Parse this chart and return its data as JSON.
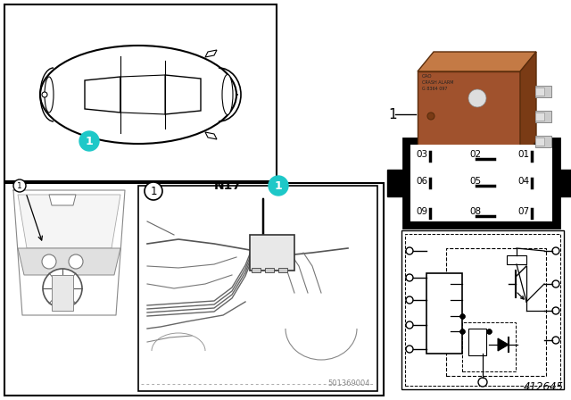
{
  "bg_color": "#ffffff",
  "cyan_color": "#1ec8c8",
  "relay_brown": "#a0522d",
  "relay_brown_top": "#c47a45",
  "relay_brown_right": "#7a3b15",
  "pin_gray": "#b0b0b0",
  "pin_dark": "#909090",
  "grid_bg": "#000000",
  "grid_white": "#ffffff",
  "part_number": "1",
  "diagram_number": "412645",
  "stamp": "501369004",
  "label_N17": "N17",
  "grid_labels_row1": [
    "03",
    "02",
    "01"
  ],
  "grid_labels_row2": [
    "06",
    "05",
    "04"
  ],
  "grid_labels_row3": [
    "09",
    "08",
    "07"
  ]
}
